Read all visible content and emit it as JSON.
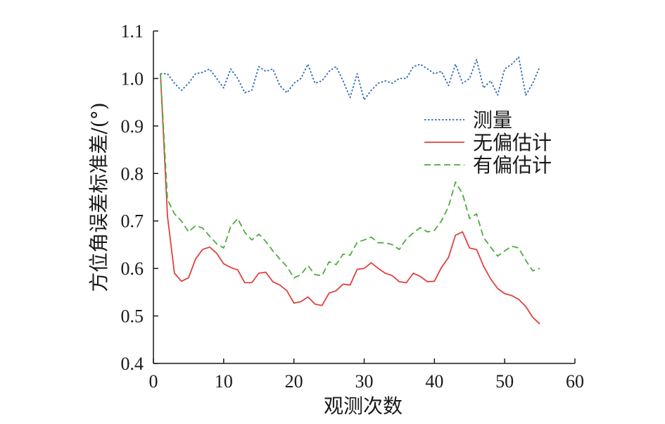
{
  "chart_data": {
    "type": "line",
    "title": "",
    "xlabel": "观测次数",
    "ylabel": "方位角误差标准差/(°)",
    "xlim": [
      0,
      60
    ],
    "ylim": [
      0.4,
      1.1
    ],
    "x_ticks": [
      "0",
      "10",
      "20",
      "30",
      "40",
      "50",
      "60"
    ],
    "y_ticks": [
      "0.4",
      "0.5",
      "0.6",
      "0.7",
      "0.8",
      "0.9",
      "1.0",
      "1.1"
    ],
    "grid": false,
    "legend_position": "right",
    "x": [
      1,
      2,
      3,
      4,
      5,
      6,
      7,
      8,
      9,
      10,
      11,
      12,
      13,
      14,
      15,
      16,
      17,
      18,
      19,
      20,
      21,
      22,
      23,
      24,
      25,
      26,
      27,
      28,
      29,
      30,
      31,
      32,
      33,
      34,
      35,
      36,
      37,
      38,
      39,
      40,
      41,
      42,
      43,
      44,
      45,
      46,
      47,
      48,
      49,
      50,
      51,
      52,
      53,
      54,
      55
    ],
    "series": [
      {
        "name": "测量",
        "color": "#2b6cb8",
        "dash": "dotted",
        "values": [
          1.01,
          1.01,
          0.99,
          0.975,
          0.99,
          1.01,
          1.013,
          1.02,
          1.0,
          0.98,
          1.02,
          1.0,
          0.97,
          0.975,
          1.025,
          1.015,
          1.02,
          0.985,
          0.97,
          0.99,
          1.0,
          1.03,
          0.99,
          0.995,
          1.015,
          1.025,
          0.995,
          0.96,
          1.01,
          0.955,
          0.975,
          0.99,
          0.995,
          0.99,
          1.0,
          1.0,
          1.025,
          1.03,
          1.02,
          1.01,
          1.015,
          0.985,
          1.03,
          0.99,
          1.0,
          1.04,
          0.98,
          0.995,
          0.965,
          1.02,
          1.03,
          1.045,
          0.965,
          0.99,
          1.025
        ]
      },
      {
        "name": "无偏估计",
        "color": "#e04040",
        "dash": "solid",
        "values": [
          1.01,
          0.71,
          0.59,
          0.573,
          0.58,
          0.62,
          0.64,
          0.645,
          0.632,
          0.61,
          0.602,
          0.597,
          0.57,
          0.57,
          0.59,
          0.592,
          0.572,
          0.565,
          0.553,
          0.527,
          0.53,
          0.54,
          0.525,
          0.522,
          0.548,
          0.553,
          0.567,
          0.565,
          0.598,
          0.6,
          0.612,
          0.6,
          0.59,
          0.585,
          0.572,
          0.57,
          0.59,
          0.583,
          0.572,
          0.573,
          0.602,
          0.623,
          0.67,
          0.677,
          0.643,
          0.64,
          0.605,
          0.578,
          0.558,
          0.547,
          0.543,
          0.535,
          0.52,
          0.497,
          0.483
        ]
      },
      {
        "name": "有偏估计",
        "color": "#4cac3c",
        "dash": "dashed",
        "values": [
          1.01,
          0.745,
          0.715,
          0.7,
          0.677,
          0.69,
          0.685,
          0.668,
          0.652,
          0.643,
          0.688,
          0.705,
          0.676,
          0.66,
          0.672,
          0.657,
          0.637,
          0.62,
          0.604,
          0.58,
          0.587,
          0.606,
          0.587,
          0.585,
          0.614,
          0.608,
          0.63,
          0.628,
          0.655,
          0.66,
          0.666,
          0.654,
          0.654,
          0.65,
          0.64,
          0.662,
          0.675,
          0.686,
          0.677,
          0.68,
          0.7,
          0.73,
          0.782,
          0.757,
          0.705,
          0.715,
          0.665,
          0.645,
          0.626,
          0.637,
          0.647,
          0.643,
          0.617,
          0.595,
          0.6
        ]
      }
    ]
  }
}
